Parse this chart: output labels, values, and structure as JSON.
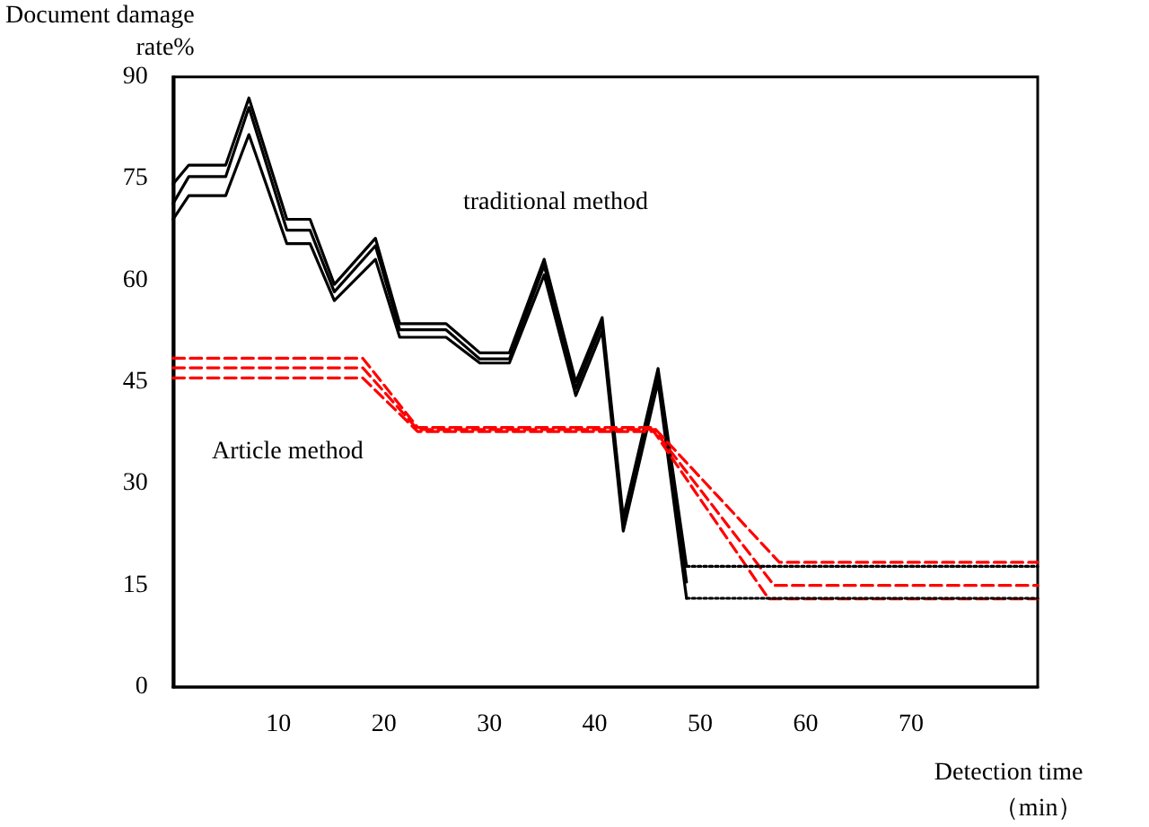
{
  "chart_data": {
    "type": "line",
    "xlabel": "Detection time\n（min）",
    "ylabel": "Document damage\nrate%",
    "xlim": [
      0,
      82
    ],
    "xticks": [
      10,
      20,
      30,
      40,
      50,
      60,
      70
    ],
    "ylim": [
      0,
      90
    ],
    "yticks": [
      0,
      15,
      30,
      45,
      60,
      75,
      90
    ],
    "grid": false,
    "marker": "none",
    "annotations": [
      "traditional method",
      "Article method"
    ],
    "series": [
      {
        "color": "#000000",
        "line_style": "solid",
        "x": [
          0,
          1.5,
          5,
          7.2,
          10.8,
          13,
          15.3,
          19.2,
          21.5,
          25.9,
          29.1,
          31.9,
          35.2,
          38.2,
          40.7,
          42.7,
          46,
          48.7
        ],
        "values": [
          74.2,
          77,
          77,
          86.9,
          69,
          69,
          59.4,
          66.2,
          53.6,
          53.6,
          49.3,
          49.3,
          63.1,
          45,
          54.5,
          25,
          47,
          17.8
        ]
      },
      {
        "color": "#000000",
        "line_style": "solid",
        "x": [
          0,
          1.5,
          5,
          7.2,
          10.8,
          13,
          15.3,
          19.2,
          21.5,
          25.9,
          29.1,
          31.9,
          35.2,
          38.2,
          40.7,
          42.7,
          46,
          48.7
        ],
        "values": [
          71.3,
          75.3,
          75.3,
          85.5,
          67.4,
          67.4,
          58.3,
          65.1,
          52.7,
          52.7,
          48.4,
          48.4,
          62.2,
          44,
          53.6,
          24,
          46,
          15.5
        ]
      },
      {
        "color": "#000000",
        "line_style": "solid",
        "x": [
          0,
          1.5,
          5,
          7.2,
          10.8,
          13,
          15.3,
          19.2,
          21.5,
          25.9,
          29.1,
          31.9,
          35.2,
          38.2,
          40.7,
          42.7,
          46,
          48.7
        ],
        "values": [
          69,
          72.5,
          72.5,
          81.5,
          65.4,
          65.4,
          57,
          63.1,
          51.6,
          51.6,
          47.8,
          47.8,
          60.8,
          43,
          52.5,
          23,
          45,
          13.1
        ]
      },
      {
        "color": "#ff0000",
        "line_style": "dashed",
        "x": [
          0,
          18,
          23.2,
          45.6,
          57.5,
          82
        ],
        "values": [
          48.5,
          48.5,
          38.3,
          38.3,
          18.4,
          18.4
        ]
      },
      {
        "color": "#ff0000",
        "line_style": "dashed",
        "x": [
          0,
          18,
          23.2,
          45.6,
          57,
          82
        ],
        "values": [
          47.1,
          47.1,
          38,
          38,
          15,
          15
        ]
      },
      {
        "color": "#ff0000",
        "line_style": "dashed",
        "x": [
          0,
          18,
          23.2,
          45.6,
          56.5,
          82
        ],
        "values": [
          45.6,
          45.6,
          37.7,
          37.7,
          13,
          13
        ]
      },
      {
        "color": "#000000",
        "line_style": "dotted",
        "x": [
          48.7,
          82
        ],
        "values": [
          17.8,
          17.8
        ]
      },
      {
        "color": "#000000",
        "line_style": "dotted",
        "x": [
          48.7,
          82
        ],
        "values": [
          13.1,
          13.1
        ]
      }
    ]
  }
}
